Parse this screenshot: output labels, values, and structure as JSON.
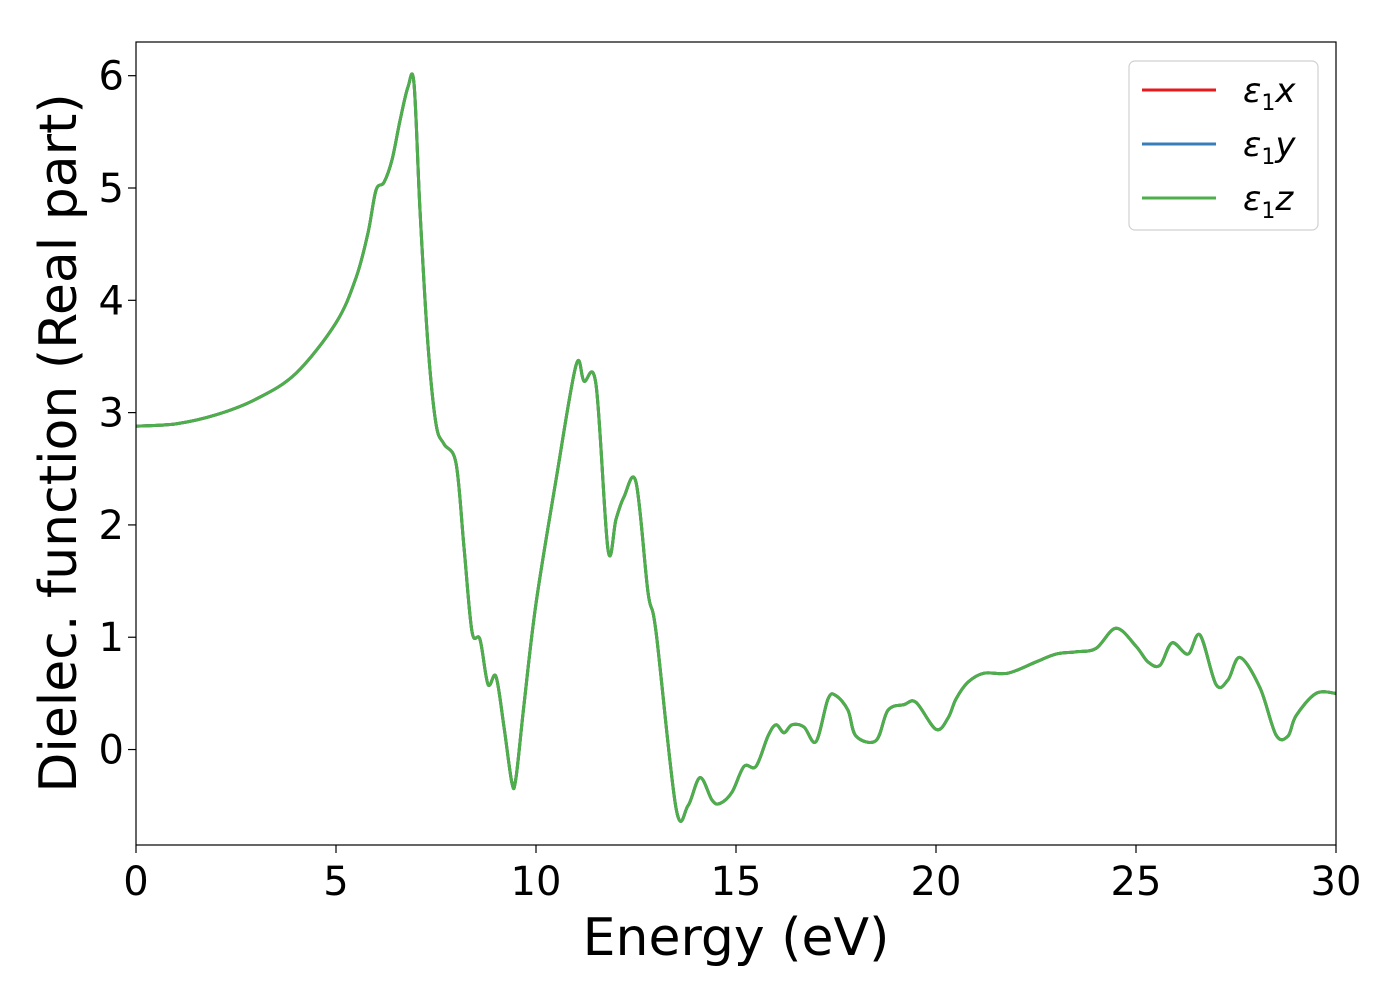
{
  "chart_data": {
    "type": "line",
    "title": "",
    "xlabel": "Energy (eV)",
    "ylabel": "Dielec. function (Real part)",
    "xlim": [
      0,
      30
    ],
    "ylim": [
      -0.85,
      6.3
    ],
    "xticks": [
      0,
      5,
      10,
      15,
      20,
      25,
      30
    ],
    "yticks": [
      0,
      1,
      2,
      3,
      4,
      5,
      6
    ],
    "grid": false,
    "legend_position": "top-right",
    "x": [
      0,
      1,
      2,
      3,
      4,
      5,
      5.5,
      5.8,
      6.0,
      6.2,
      6.4,
      6.6,
      6.8,
      6.95,
      7.1,
      7.3,
      7.5,
      7.7,
      8.0,
      8.2,
      8.4,
      8.6,
      8.8,
      9.0,
      9.2,
      9.4,
      9.5,
      9.7,
      10.0,
      10.5,
      11.0,
      11.2,
      11.5,
      11.8,
      12.0,
      12.2,
      12.5,
      12.8,
      13.0,
      13.5,
      13.8,
      14.1,
      14.4,
      14.6,
      14.9,
      15.2,
      15.5,
      15.8,
      16.0,
      16.2,
      16.4,
      16.7,
      17.0,
      17.3,
      17.5,
      17.8,
      18.0,
      18.5,
      18.8,
      19.2,
      19.5,
      20.0,
      20.3,
      20.5,
      20.8,
      21.2,
      21.8,
      22.5,
      23.0,
      23.5,
      24.0,
      24.5,
      25.0,
      25.3,
      25.6,
      25.9,
      26.3,
      26.6,
      27.0,
      27.3,
      27.6,
      28.1,
      28.5,
      28.8,
      29.0,
      29.5,
      30.0
    ],
    "series": [
      {
        "name": "x",
        "color": "#e41a1c",
        "values": [
          2.88,
          2.9,
          2.98,
          3.12,
          3.35,
          3.8,
          4.2,
          4.6,
          4.98,
          5.05,
          5.25,
          5.6,
          5.9,
          5.93,
          4.8,
          3.6,
          2.9,
          2.72,
          2.55,
          1.8,
          1.05,
          0.98,
          0.58,
          0.65,
          0.2,
          -0.3,
          -0.25,
          0.4,
          1.3,
          2.4,
          3.42,
          3.28,
          3.25,
          1.78,
          2.05,
          2.25,
          2.38,
          1.4,
          1.05,
          -0.52,
          -0.5,
          -0.25,
          -0.45,
          -0.48,
          -0.38,
          -0.15,
          -0.15,
          0.12,
          0.22,
          0.15,
          0.22,
          0.2,
          0.07,
          0.45,
          0.48,
          0.35,
          0.12,
          0.08,
          0.35,
          0.4,
          0.42,
          0.18,
          0.28,
          0.45,
          0.6,
          0.68,
          0.68,
          0.78,
          0.85,
          0.87,
          0.9,
          1.08,
          0.92,
          0.78,
          0.75,
          0.95,
          0.85,
          1.02,
          0.58,
          0.62,
          0.82,
          0.55,
          0.13,
          0.12,
          0.3,
          0.5,
          0.5
        ]
      },
      {
        "name": "y",
        "color": "#377eb8",
        "values": [
          2.88,
          2.9,
          2.98,
          3.12,
          3.35,
          3.8,
          4.2,
          4.6,
          4.98,
          5.05,
          5.25,
          5.6,
          5.9,
          5.93,
          4.8,
          3.6,
          2.9,
          2.72,
          2.55,
          1.8,
          1.05,
          0.98,
          0.58,
          0.65,
          0.2,
          -0.3,
          -0.25,
          0.4,
          1.3,
          2.4,
          3.42,
          3.28,
          3.25,
          1.78,
          2.05,
          2.25,
          2.38,
          1.4,
          1.05,
          -0.52,
          -0.5,
          -0.25,
          -0.45,
          -0.48,
          -0.38,
          -0.15,
          -0.15,
          0.12,
          0.22,
          0.15,
          0.22,
          0.2,
          0.07,
          0.45,
          0.48,
          0.35,
          0.12,
          0.08,
          0.35,
          0.4,
          0.42,
          0.18,
          0.28,
          0.45,
          0.6,
          0.68,
          0.68,
          0.78,
          0.85,
          0.87,
          0.9,
          1.08,
          0.92,
          0.78,
          0.75,
          0.95,
          0.85,
          1.02,
          0.58,
          0.62,
          0.82,
          0.55,
          0.13,
          0.12,
          0.3,
          0.5,
          0.5
        ]
      },
      {
        "name": "z",
        "color": "#4daf4a",
        "values": [
          2.88,
          2.9,
          2.98,
          3.12,
          3.35,
          3.8,
          4.2,
          4.6,
          4.98,
          5.05,
          5.25,
          5.6,
          5.9,
          5.93,
          4.8,
          3.6,
          2.9,
          2.72,
          2.55,
          1.8,
          1.05,
          0.98,
          0.58,
          0.65,
          0.2,
          -0.3,
          -0.25,
          0.4,
          1.3,
          2.4,
          3.42,
          3.28,
          3.25,
          1.78,
          2.05,
          2.25,
          2.38,
          1.4,
          1.05,
          -0.52,
          -0.5,
          -0.25,
          -0.45,
          -0.48,
          -0.38,
          -0.15,
          -0.15,
          0.12,
          0.22,
          0.15,
          0.22,
          0.2,
          0.07,
          0.45,
          0.48,
          0.35,
          0.12,
          0.08,
          0.35,
          0.4,
          0.42,
          0.18,
          0.28,
          0.45,
          0.6,
          0.68,
          0.68,
          0.78,
          0.85,
          0.87,
          0.9,
          1.08,
          0.92,
          0.78,
          0.75,
          0.95,
          0.85,
          1.02,
          0.58,
          0.62,
          0.82,
          0.55,
          0.13,
          0.12,
          0.3,
          0.5,
          0.5
        ]
      }
    ],
    "legend": {
      "entries": [
        {
          "symbol": "ε",
          "sub": "1",
          "var": "x",
          "color": "#e41a1c"
        },
        {
          "symbol": "ε",
          "sub": "1",
          "var": "y",
          "color": "#377eb8"
        },
        {
          "symbol": "ε",
          "sub": "1",
          "var": "z",
          "color": "#4daf4a"
        }
      ]
    }
  }
}
